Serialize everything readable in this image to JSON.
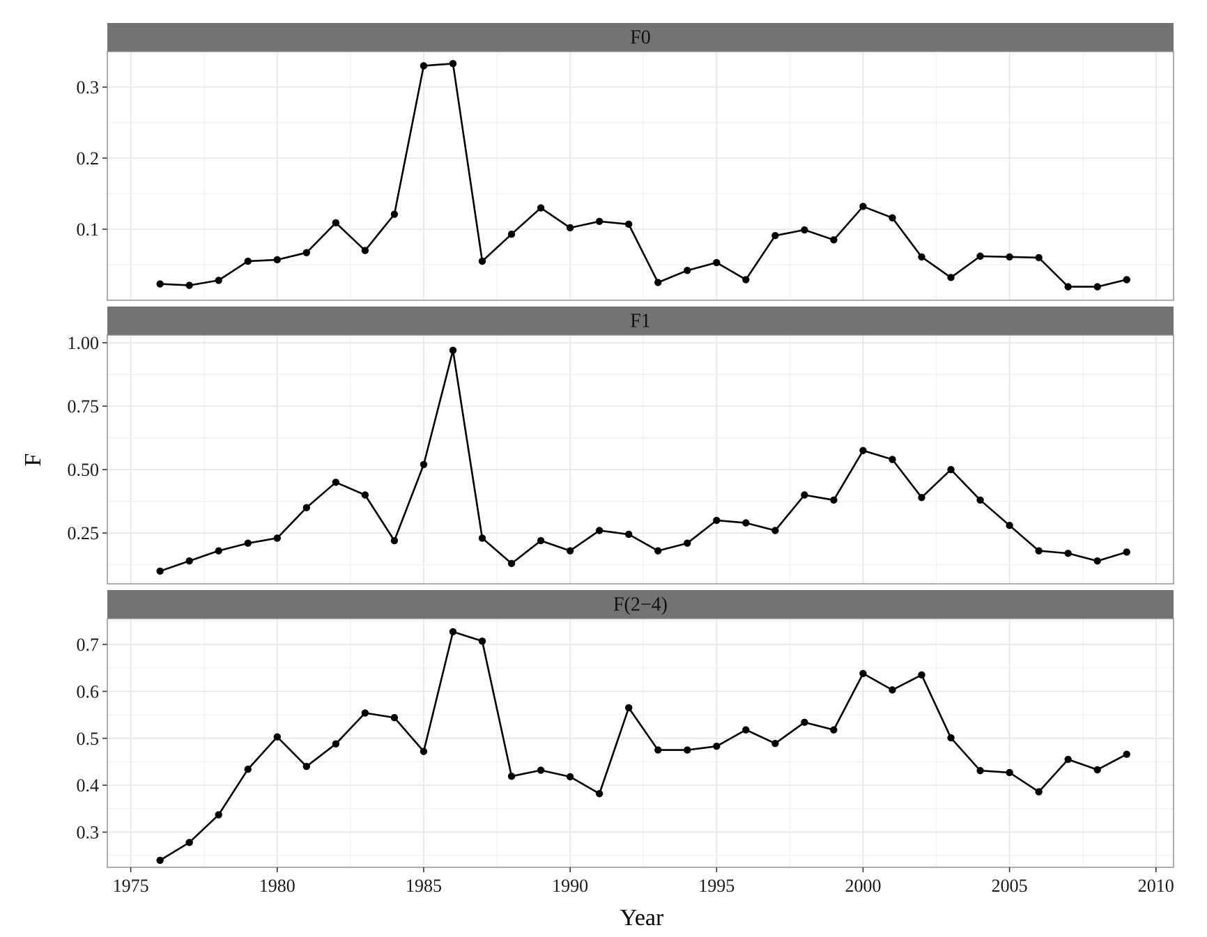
{
  "chart_data": {
    "type": "line",
    "facet": "rows",
    "xlabel": "Year",
    "ylabel": "F",
    "xlim": [
      1974.2,
      2010.6
    ],
    "xticks": [
      1975,
      1980,
      1985,
      1990,
      1995,
      2000,
      2005,
      2010
    ],
    "x": [
      1976,
      1977,
      1978,
      1979,
      1980,
      1981,
      1982,
      1983,
      1984,
      1985,
      1986,
      1987,
      1988,
      1989,
      1990,
      1991,
      1992,
      1993,
      1994,
      1995,
      1996,
      1997,
      1998,
      1999,
      2000,
      2001,
      2002,
      2003,
      2004,
      2005,
      2006,
      2007,
      2008,
      2009
    ],
    "grid": true,
    "colors": {
      "line": "#000000",
      "strip": "#737373",
      "grid": "#e6e6e6",
      "frame": "#8c8c8c"
    },
    "panels": [
      {
        "label": "F0",
        "ylim": [
          0.0,
          0.35
        ],
        "yticks": [
          0.1,
          0.2,
          0.3
        ],
        "tick_labels": [
          "0.1",
          "0.2",
          "0.3"
        ],
        "values": [
          0.023,
          0.021,
          0.028,
          0.055,
          0.057,
          0.067,
          0.109,
          0.07,
          0.121,
          0.33,
          0.333,
          0.055,
          0.093,
          0.13,
          0.102,
          0.111,
          0.107,
          0.025,
          0.042,
          0.053,
          0.029,
          0.091,
          0.099,
          0.085,
          0.132,
          0.116,
          0.061,
          0.032,
          0.062,
          0.061,
          0.06,
          0.019,
          0.019,
          0.029
        ]
      },
      {
        "label": "F1",
        "ylim": [
          0.05,
          1.03
        ],
        "yticks": [
          0.25,
          0.5,
          0.75,
          1.0
        ],
        "tick_labels": [
          "0.25",
          "0.50",
          "0.75",
          "1.00"
        ],
        "values": [
          0.1,
          0.14,
          0.18,
          0.21,
          0.23,
          0.35,
          0.45,
          0.4,
          0.22,
          0.52,
          0.97,
          0.23,
          0.13,
          0.22,
          0.18,
          0.26,
          0.245,
          0.18,
          0.21,
          0.3,
          0.29,
          0.26,
          0.4,
          0.38,
          0.575,
          0.54,
          0.39,
          0.5,
          0.38,
          0.28,
          0.18,
          0.17,
          0.14,
          0.175
        ]
      },
      {
        "label": "F(2−4)",
        "ylim": [
          0.225,
          0.755
        ],
        "yticks": [
          0.3,
          0.4,
          0.5,
          0.6,
          0.7
        ],
        "tick_labels": [
          "0.3",
          "0.4",
          "0.5",
          "0.6",
          "0.7"
        ],
        "values": [
          0.24,
          0.278,
          0.337,
          0.434,
          0.503,
          0.44,
          0.488,
          0.554,
          0.544,
          0.472,
          0.727,
          0.707,
          0.419,
          0.432,
          0.418,
          0.382,
          0.565,
          0.475,
          0.475,
          0.483,
          0.518,
          0.489,
          0.534,
          0.518,
          0.638,
          0.603,
          0.635,
          0.501,
          0.431,
          0.427,
          0.386,
          0.455,
          0.433,
          0.466
        ]
      }
    ]
  }
}
